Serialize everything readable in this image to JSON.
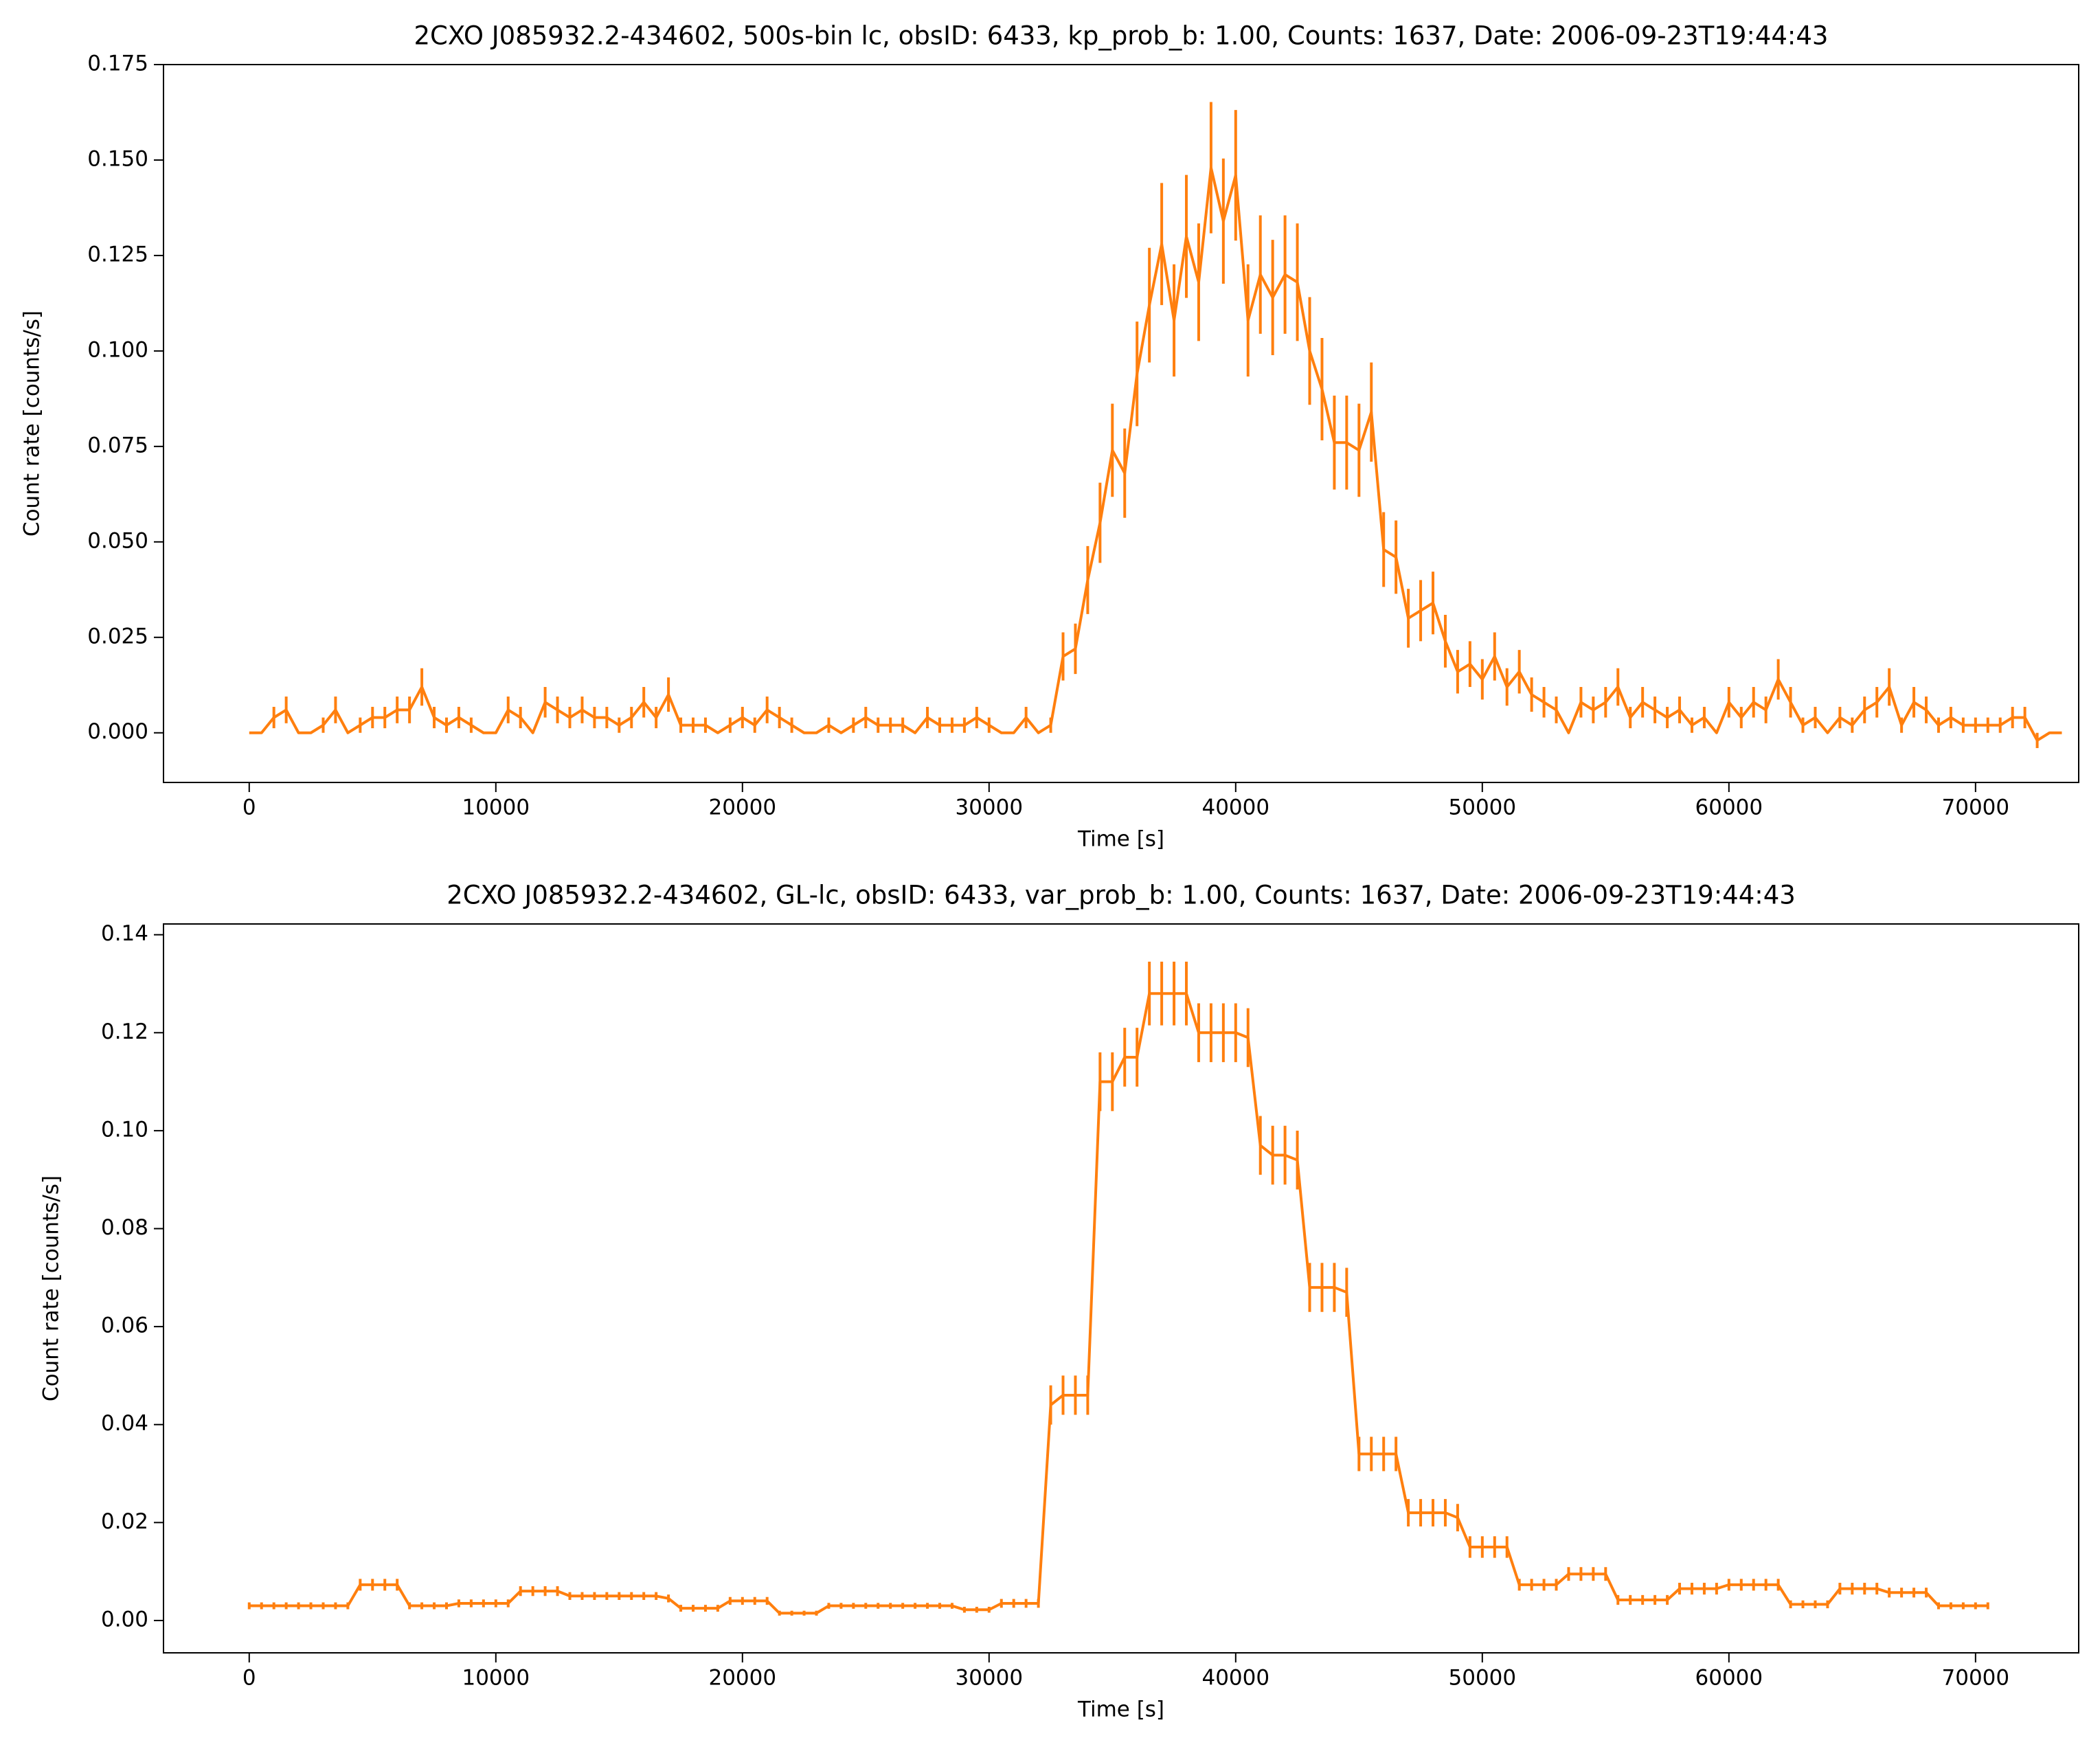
{
  "chart_data": [
    {
      "type": "line",
      "title": "2CXO J085932.2-434602, 500s-bin lc, obsID: 6433, kp_prob_b: 1.00, Counts: 1637, Date: 2006-09-23T19:44:43",
      "xlabel": "Time [s]",
      "ylabel": "Count rate [counts/s]",
      "xlim": [
        -3476,
        74183
      ],
      "ylim": [
        -0.013,
        0.175
      ],
      "xticks": [
        0,
        10000,
        20000,
        30000,
        40000,
        50000,
        60000,
        70000
      ],
      "yticks": [
        {
          "value": 0,
          "label": "0.000"
        },
        {
          "value": 0.025,
          "label": "0.025"
        },
        {
          "value": 0.05,
          "label": "0.050"
        },
        {
          "value": 0.075,
          "label": "0.075"
        },
        {
          "value": 0.1,
          "label": "0.100"
        },
        {
          "value": 0.125,
          "label": "0.125"
        },
        {
          "value": 0.15,
          "label": "0.150"
        },
        {
          "value": 0.175,
          "label": "0.175"
        }
      ],
      "x": [
        0,
        500,
        1000,
        1500,
        2000,
        2500,
        3000,
        3500,
        4000,
        4500,
        5000,
        5500,
        6000,
        6500,
        7000,
        7500,
        8000,
        8500,
        9000,
        9500,
        10000,
        10500,
        11000,
        11500,
        12000,
        12500,
        13000,
        13500,
        14000,
        14500,
        15000,
        15500,
        16000,
        16500,
        17000,
        17500,
        18000,
        18500,
        19000,
        19500,
        20000,
        20500,
        21000,
        21500,
        22000,
        22500,
        23000,
        23500,
        24000,
        24500,
        25000,
        25500,
        26000,
        26500,
        27000,
        27500,
        28000,
        28500,
        29000,
        29500,
        30000,
        30500,
        31000,
        31500,
        32000,
        32500,
        33000,
        33500,
        34000,
        34500,
        35000,
        35500,
        36000,
        36500,
        37000,
        37500,
        38000,
        38500,
        39000,
        39500,
        40000,
        40500,
        41000,
        41500,
        42000,
        42500,
        43000,
        43500,
        44000,
        44500,
        45000,
        45500,
        46000,
        46500,
        47000,
        47500,
        48000,
        48500,
        49000,
        49500,
        50000,
        50500,
        51000,
        51500,
        52000,
        52500,
        53000,
        53500,
        54000,
        54500,
        55000,
        55500,
        56000,
        56500,
        57000,
        57500,
        58000,
        58500,
        59000,
        59500,
        60000,
        60500,
        61000,
        61500,
        62000,
        62500,
        63000,
        63500,
        64000,
        64500,
        65000,
        65500,
        66000,
        66500,
        67000,
        67500,
        68000,
        68500,
        69000,
        69500,
        70000,
        70500,
        71000,
        71500,
        72000,
        72500,
        73000,
        73500
      ],
      "series": [
        {
          "color": "#ff7f0e",
          "values": [
            0,
            0,
            0.004,
            0.006,
            0,
            0,
            0.002,
            0.006,
            0,
            0.002,
            0.004,
            0.004,
            0.006,
            0.006,
            0.012,
            0.004,
            0.002,
            0.004,
            0.002,
            0,
            0,
            0.006,
            0.004,
            0,
            0.008,
            0.006,
            0.004,
            0.006,
            0.004,
            0.004,
            0.002,
            0.004,
            0.008,
            0.004,
            0.01,
            0.002,
            0.002,
            0.002,
            0,
            0.002,
            0.004,
            0.002,
            0.006,
            0.004,
            0.002,
            0,
            0,
            0.002,
            0,
            0.002,
            0.004,
            0.002,
            0.002,
            0.002,
            0,
            0.004,
            0.002,
            0.002,
            0.002,
            0.004,
            0.002,
            0,
            0,
            0.004,
            0,
            0.002,
            0.02,
            0.022,
            0.04,
            0.055,
            0.074,
            0.068,
            0.094,
            0.112,
            0.128,
            0.108,
            0.13,
            0.118,
            0.148,
            0.134,
            0.146,
            0.108,
            0.12,
            0.114,
            0.12,
            0.118,
            0.1,
            0.09,
            0.076,
            0.076,
            0.074,
            0.084,
            0.048,
            0.046,
            0.03,
            0.032,
            0.034,
            0.024,
            0.016,
            0.018,
            0.014,
            0.02,
            0.012,
            0.016,
            0.01,
            0.008,
            0.006,
            0,
            0.008,
            0.006,
            0.008,
            0.012,
            0.004,
            0.008,
            0.006,
            0.004,
            0.006,
            0.002,
            0.004,
            0,
            0.008,
            0.004,
            0.008,
            0.006,
            0.014,
            0.008,
            0.002,
            0.004,
            0,
            0.004,
            0.002,
            0.006,
            0.008,
            0.012,
            0.002,
            0.008,
            0.006,
            0.002,
            0.004,
            0.002,
            0.002,
            0.002,
            0.002,
            0.004,
            0.004,
            -0.002,
            0,
            0
          ],
          "errors": [
            0,
            0,
            0.0028,
            0.0035,
            0,
            0,
            0.002,
            0.0035,
            0,
            0.002,
            0.0028,
            0.0028,
            0.0035,
            0.0035,
            0.0049,
            0.0028,
            0.002,
            0.0028,
            0.002,
            0,
            0,
            0.0035,
            0.0028,
            0,
            0.004,
            0.0035,
            0.0028,
            0.0035,
            0.0028,
            0.0028,
            0.002,
            0.0028,
            0.004,
            0.0028,
            0.0045,
            0.002,
            0.002,
            0.002,
            0,
            0.002,
            0.0028,
            0.002,
            0.0035,
            0.0028,
            0.002,
            0,
            0,
            0.002,
            0,
            0.002,
            0.0028,
            0.002,
            0.002,
            0.002,
            0,
            0.0028,
            0.002,
            0.002,
            0.002,
            0.0028,
            0.002,
            0,
            0,
            0.0028,
            0,
            0.002,
            0.0063,
            0.0066,
            0.0089,
            0.0105,
            0.0122,
            0.0117,
            0.0137,
            0.015,
            0.016,
            0.0147,
            0.0161,
            0.0154,
            0.0172,
            0.0164,
            0.0171,
            0.0147,
            0.0155,
            0.0151,
            0.0155,
            0.0154,
            0.0141,
            0.0134,
            0.0123,
            0.0123,
            0.0122,
            0.013,
            0.0098,
            0.0096,
            0.0077,
            0.008,
            0.0082,
            0.0069,
            0.0057,
            0.006,
            0.0053,
            0.0063,
            0.0049,
            0.0057,
            0.0045,
            0.004,
            0.0035,
            0,
            0.004,
            0.0035,
            0.004,
            0.0049,
            0.0028,
            0.004,
            0.0035,
            0.0028,
            0.0035,
            0.002,
            0.0028,
            0,
            0.004,
            0.0028,
            0.004,
            0.0035,
            0.0053,
            0.004,
            0.002,
            0.0028,
            0,
            0.0028,
            0.002,
            0.0035,
            0.004,
            0.0049,
            0.002,
            0.004,
            0.0035,
            0.002,
            0.0028,
            0.002,
            0.002,
            0.002,
            0.002,
            0.0028,
            0.0028,
            0.002,
            0,
            0
          ]
        }
      ]
    },
    {
      "type": "line",
      "title": "2CXO J085932.2-434602, GL-lc, obsID: 6433, var_prob_b: 1.00, Counts: 1637, Date: 2006-09-23T19:44:43",
      "xlabel": "Time [s]",
      "ylabel": "Count rate [counts/s]",
      "xlim": [
        -3476,
        74183
      ],
      "ylim": [
        -0.0066,
        0.1422
      ],
      "xticks": [
        0,
        10000,
        20000,
        30000,
        40000,
        50000,
        60000,
        70000
      ],
      "yticks": [
        {
          "value": 0,
          "label": "0.00"
        },
        {
          "value": 0.02,
          "label": "0.02"
        },
        {
          "value": 0.04,
          "label": "0.04"
        },
        {
          "value": 0.06,
          "label": "0.06"
        },
        {
          "value": 0.08,
          "label": "0.08"
        },
        {
          "value": 0.1,
          "label": "0.10"
        },
        {
          "value": 0.12,
          "label": "0.12"
        },
        {
          "value": 0.14,
          "label": "0.14"
        }
      ],
      "x": [
        0,
        500,
        1000,
        1500,
        2000,
        2500,
        3000,
        3500,
        4000,
        4500,
        5000,
        5500,
        6000,
        6500,
        7000,
        7500,
        8000,
        8500,
        9000,
        9500,
        10000,
        10500,
        11000,
        11500,
        12000,
        12500,
        13000,
        13500,
        14000,
        14500,
        15000,
        15500,
        16000,
        16500,
        17000,
        17500,
        18000,
        18500,
        19000,
        19500,
        20000,
        20500,
        21000,
        21500,
        22000,
        22500,
        23000,
        23500,
        24000,
        24500,
        25000,
        25500,
        26000,
        26500,
        27000,
        27500,
        28000,
        28500,
        29000,
        29500,
        30000,
        30500,
        31000,
        31500,
        32000,
        32500,
        33000,
        33500,
        34000,
        34500,
        35000,
        35500,
        36000,
        36500,
        37000,
        37500,
        38000,
        38500,
        39000,
        39500,
        40000,
        40500,
        41000,
        41500,
        42000,
        42500,
        43000,
        43500,
        44000,
        44500,
        45000,
        45500,
        46000,
        46500,
        47000,
        47500,
        48000,
        48500,
        49000,
        49500,
        50000,
        50500,
        51000,
        51500,
        52000,
        52500,
        53000,
        53500,
        54000,
        54500,
        55000,
        55500,
        56000,
        56500,
        57000,
        57500,
        58000,
        58500,
        59000,
        59500,
        60000,
        60500,
        61000,
        61500,
        62000,
        62500,
        63000,
        63500,
        64000,
        64500,
        65000,
        65500,
        66000,
        66500,
        67000,
        67500,
        68000,
        68500,
        69000,
        69500,
        70000,
        70500
      ],
      "series": [
        {
          "color": "#ff7f0e",
          "values": [
            0.003,
            0.003,
            0.003,
            0.003,
            0.003,
            0.003,
            0.003,
            0.003,
            0.003,
            0.0073,
            0.0073,
            0.0073,
            0.0073,
            0.003,
            0.003,
            0.003,
            0.003,
            0.0035,
            0.0035,
            0.0035,
            0.0035,
            0.0035,
            0.006,
            0.006,
            0.006,
            0.006,
            0.005,
            0.005,
            0.005,
            0.005,
            0.005,
            0.005,
            0.005,
            0.005,
            0.0045,
            0.0025,
            0.0025,
            0.0025,
            0.0025,
            0.004,
            0.004,
            0.004,
            0.004,
            0.0015,
            0.0015,
            0.0015,
            0.0015,
            0.003,
            0.003,
            0.003,
            0.003,
            0.003,
            0.003,
            0.003,
            0.003,
            0.003,
            0.003,
            0.003,
            0.0022,
            0.0022,
            0.0022,
            0.0035,
            0.0035,
            0.0035,
            0.0035,
            0.044,
            0.046,
            0.046,
            0.046,
            0.11,
            0.11,
            0.115,
            0.115,
            0.128,
            0.128,
            0.128,
            0.128,
            0.12,
            0.12,
            0.12,
            0.12,
            0.119,
            0.097,
            0.095,
            0.095,
            0.094,
            0.068,
            0.068,
            0.068,
            0.067,
            0.034,
            0.034,
            0.034,
            0.034,
            0.022,
            0.022,
            0.022,
            0.022,
            0.021,
            0.015,
            0.015,
            0.015,
            0.015,
            0.0073,
            0.0073,
            0.0073,
            0.0073,
            0.0095,
            0.0095,
            0.0095,
            0.0095,
            0.0042,
            0.0042,
            0.0042,
            0.0042,
            0.0042,
            0.0065,
            0.0065,
            0.0065,
            0.0065,
            0.0073,
            0.0073,
            0.0073,
            0.0073,
            0.0073,
            0.0033,
            0.0033,
            0.0033,
            0.0033,
            0.0065,
            0.0065,
            0.0065,
            0.0065,
            0.0057,
            0.0057,
            0.0057,
            0.0057,
            0.003,
            0.003,
            0.003,
            0.003,
            0.003
          ],
          "errors": [
            0.0007,
            0.0007,
            0.0007,
            0.0007,
            0.0007,
            0.0007,
            0.0007,
            0.0007,
            0.0007,
            0.0012,
            0.0012,
            0.0012,
            0.0012,
            0.0007,
            0.0007,
            0.0007,
            0.0007,
            0.0008,
            0.0008,
            0.0008,
            0.0008,
            0.0008,
            0.001,
            0.001,
            0.001,
            0.001,
            0.0008,
            0.0008,
            0.0008,
            0.0008,
            0.0008,
            0.0008,
            0.0008,
            0.0008,
            0.0008,
            0.0007,
            0.0007,
            0.0007,
            0.0007,
            0.0008,
            0.0008,
            0.0008,
            0.0008,
            0.0005,
            0.0005,
            0.0005,
            0.0005,
            0.0006,
            0.0006,
            0.0006,
            0.0006,
            0.0006,
            0.0006,
            0.0006,
            0.0006,
            0.0006,
            0.0006,
            0.0006,
            0.0006,
            0.0006,
            0.0006,
            0.0009,
            0.0009,
            0.0009,
            0.0009,
            0.004,
            0.004,
            0.004,
            0.004,
            0.006,
            0.006,
            0.006,
            0.006,
            0.0065,
            0.0065,
            0.0065,
            0.0065,
            0.006,
            0.006,
            0.006,
            0.006,
            0.006,
            0.006,
            0.006,
            0.006,
            0.006,
            0.005,
            0.005,
            0.005,
            0.005,
            0.0035,
            0.0035,
            0.0035,
            0.0035,
            0.0028,
            0.0028,
            0.0028,
            0.0028,
            0.0028,
            0.0022,
            0.0022,
            0.0022,
            0.0022,
            0.0012,
            0.0012,
            0.0012,
            0.0012,
            0.0014,
            0.0014,
            0.0014,
            0.0014,
            0.001,
            0.001,
            0.001,
            0.001,
            0.001,
            0.0012,
            0.0012,
            0.0012,
            0.0012,
            0.0012,
            0.0012,
            0.0012,
            0.0012,
            0.0012,
            0.0008,
            0.0008,
            0.0008,
            0.0008,
            0.0012,
            0.0012,
            0.0012,
            0.0012,
            0.001,
            0.001,
            0.001,
            0.001,
            0.0007,
            0.0007,
            0.0007,
            0.0007,
            0.0007
          ]
        }
      ]
    }
  ]
}
